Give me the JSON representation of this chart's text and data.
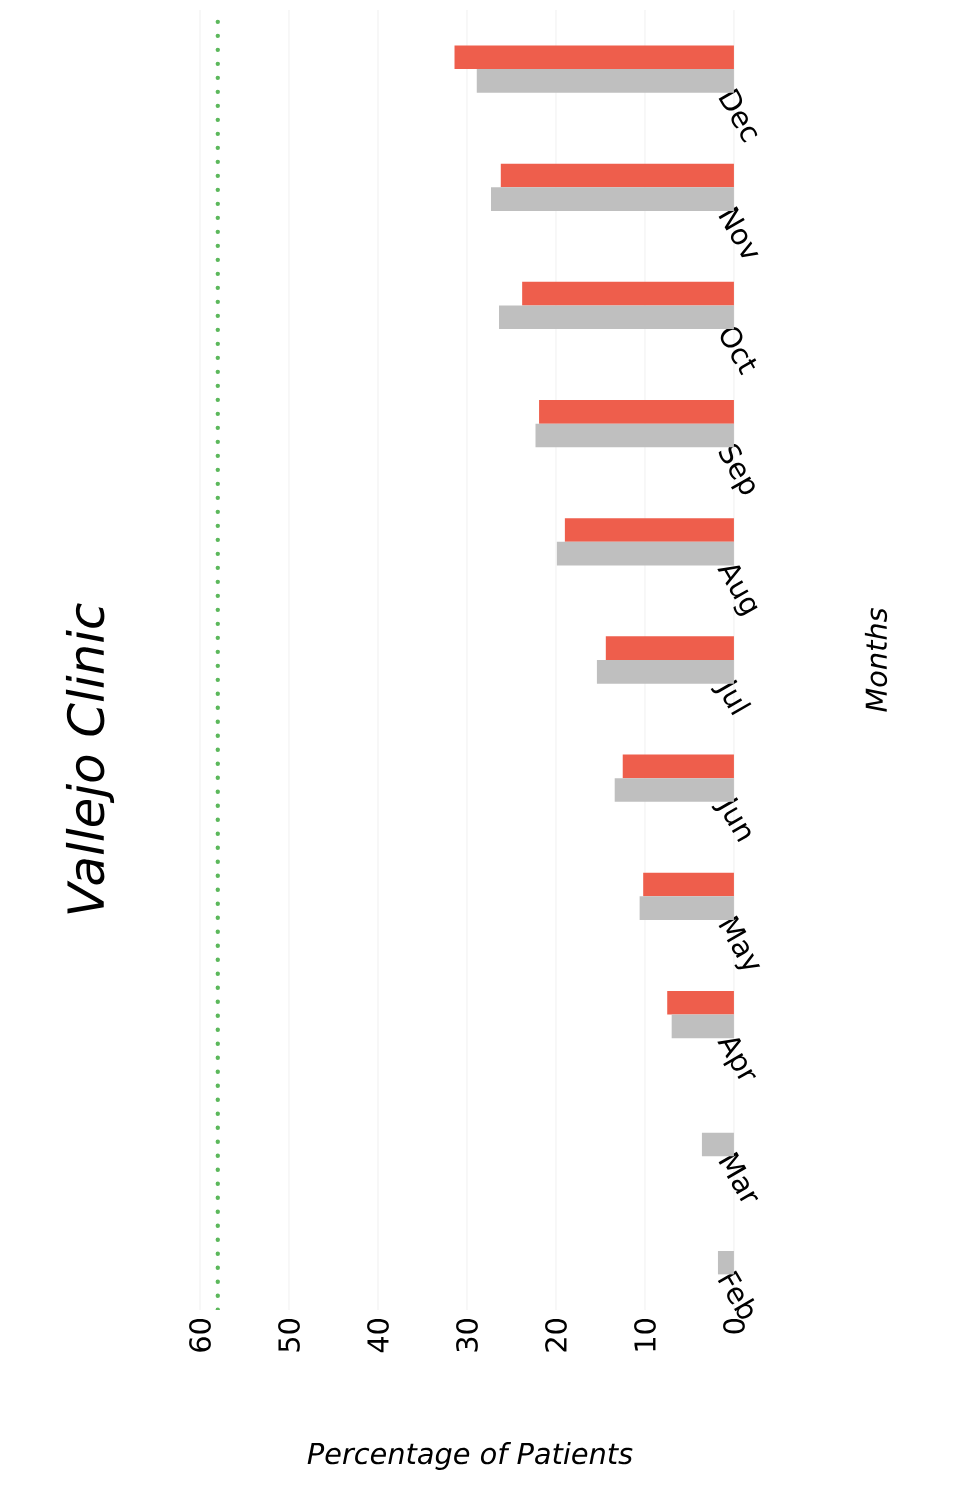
{
  "chart_data": {
    "type": "bar",
    "orientation": "horizontal",
    "title": "Vallejo Clinic",
    "xlabel": "Percentage of Patients",
    "ylabel": "Months",
    "categories": [
      "Dec",
      "Nov",
      "Oct",
      "Sep",
      "Aug",
      "Jul",
      "Jun",
      "May",
      "Apr",
      "Mar",
      "Feb"
    ],
    "series": [
      {
        "color": "#ee5e4c",
        "values": [
          31.4,
          26.2,
          23.8,
          21.9,
          19.0,
          14.4,
          12.5,
          10.2,
          7.5,
          null,
          null
        ]
      },
      {
        "color": "#bfbfbf",
        "values": [
          28.9,
          27.3,
          26.4,
          22.3,
          19.9,
          15.4,
          13.4,
          10.6,
          7.0,
          3.6,
          1.8
        ]
      }
    ],
    "xlim": [
      60,
      0
    ],
    "xticks": [
      60,
      50,
      40,
      30,
      20,
      10,
      0
    ],
    "grid": "x",
    "ref_lines": [
      {
        "axis": "x",
        "value": 58,
        "color": "#5cb85c",
        "line_style": "dotted"
      }
    ]
  }
}
